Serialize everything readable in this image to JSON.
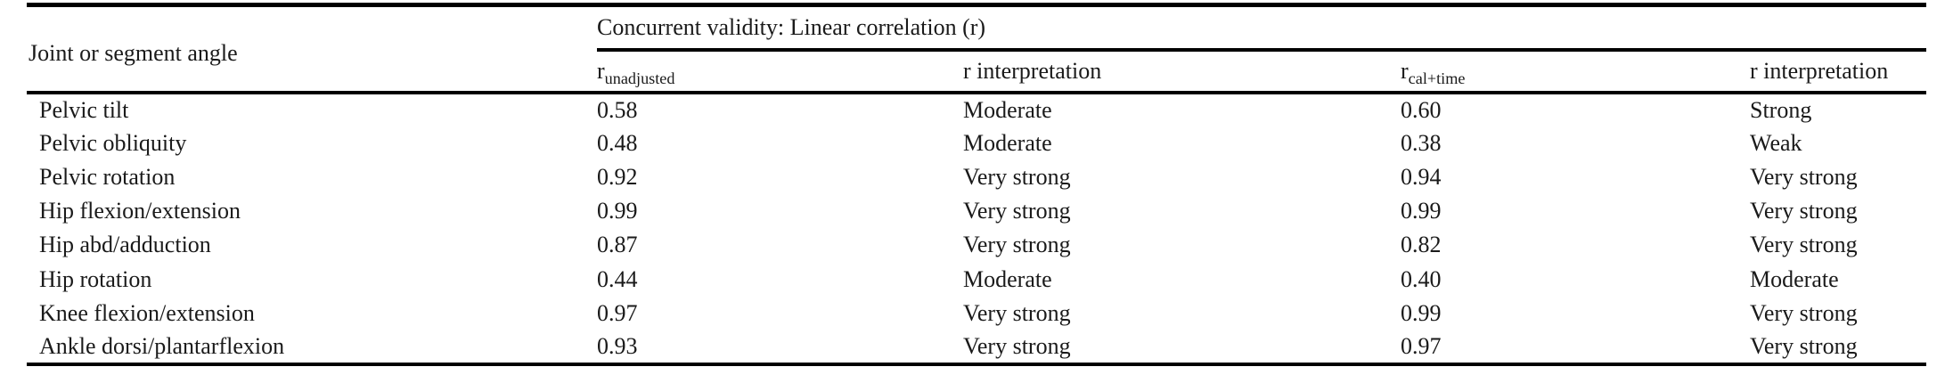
{
  "colors": {
    "background": "#ffffff",
    "text": "#1a1a1a",
    "rule": "#000000"
  },
  "table": {
    "col1_header": "Joint or segment angle",
    "span_header": "Concurrent validity: Linear correlation (r)",
    "subheaders": {
      "r_unadjusted": {
        "base": "r",
        "sub": "unadjusted"
      },
      "interp_unadjusted": "r interpretation",
      "r_cal_time": {
        "base": "r",
        "sub": "cal+time"
      },
      "interp_cal_time": "r interpretation"
    },
    "rows": [
      {
        "angle": "Pelvic tilt",
        "r_unadjusted": "0.58",
        "interp_unadjusted": "Moderate",
        "r_cal_time": "0.60",
        "interp_cal_time": "Strong"
      },
      {
        "angle": "Pelvic obliquity",
        "r_unadjusted": "0.48",
        "interp_unadjusted": "Moderate",
        "r_cal_time": "0.38",
        "interp_cal_time": "Weak"
      },
      {
        "angle": "Pelvic rotation",
        "r_unadjusted": "0.92",
        "interp_unadjusted": "Very strong",
        "r_cal_time": "0.94",
        "interp_cal_time": "Very strong"
      },
      {
        "angle": "Hip flexion/extension",
        "r_unadjusted": "0.99",
        "interp_unadjusted": "Very strong",
        "r_cal_time": "0.99",
        "interp_cal_time": "Very strong"
      },
      {
        "angle": "Hip abd/adduction",
        "r_unadjusted": "0.87",
        "interp_unadjusted": "Very strong",
        "r_cal_time": "0.82",
        "interp_cal_time": "Very strong"
      },
      {
        "angle": "Hip rotation",
        "r_unadjusted": "0.44",
        "interp_unadjusted": "Moderate",
        "r_cal_time": "0.40",
        "interp_cal_time": "Moderate"
      },
      {
        "angle": "Knee flexion/extension",
        "r_unadjusted": "0.97",
        "interp_unadjusted": "Very strong",
        "r_cal_time": "0.99",
        "interp_cal_time": "Very strong"
      },
      {
        "angle": "Ankle dorsi/plantarflexion",
        "r_unadjusted": "0.93",
        "interp_unadjusted": "Very strong",
        "r_cal_time": "0.97",
        "interp_cal_time": "Very strong"
      }
    ]
  }
}
